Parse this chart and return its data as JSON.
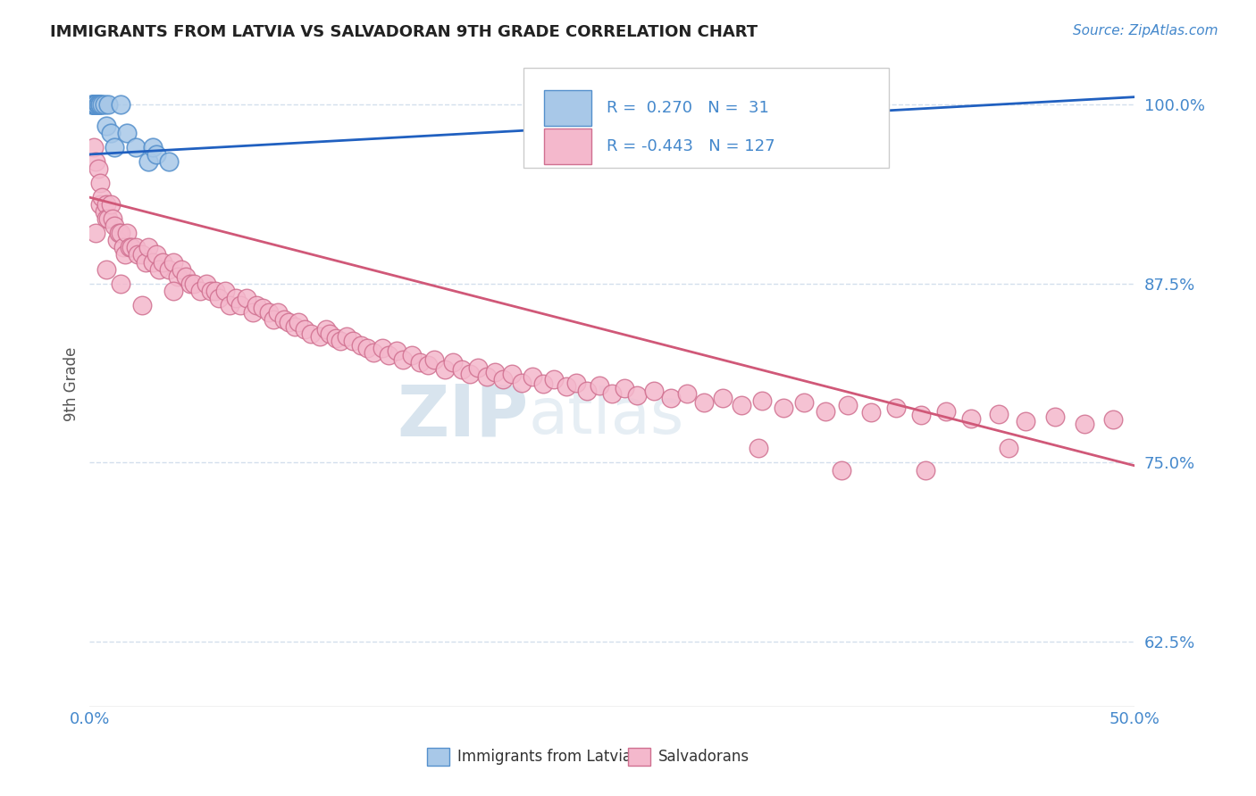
{
  "title": "IMMIGRANTS FROM LATVIA VS SALVADORAN 9TH GRADE CORRELATION CHART",
  "source_text": "Source: ZipAtlas.com",
  "ylabel": "9th Grade",
  "xmin": 0.0,
  "xmax": 0.5,
  "ymin": 0.58,
  "ymax": 1.03,
  "xtick_labels": [
    "0.0%",
    "50.0%"
  ],
  "ytick_labels": [
    "62.5%",
    "75.0%",
    "87.5%",
    "100.0%"
  ],
  "ytick_values": [
    0.625,
    0.75,
    0.875,
    1.0
  ],
  "legend_blue_label": "Immigrants from Latvia",
  "legend_pink_label": "Salvadorans",
  "R_blue": 0.27,
  "N_blue": 31,
  "R_pink": -0.443,
  "N_pink": 127,
  "blue_color": "#a8c8e8",
  "blue_edge_color": "#5590cc",
  "blue_line_color": "#2060c0",
  "pink_color": "#f4b8cc",
  "pink_edge_color": "#d07090",
  "pink_line_color": "#d05878",
  "watermark_color": "#ccdde8",
  "background_color": "#ffffff",
  "grid_color": "#c8d8e8",
  "tick_color": "#4488cc",
  "title_color": "#222222",
  "blue_trend_x0": 0.0,
  "blue_trend_y0": 0.965,
  "blue_trend_x1": 0.5,
  "blue_trend_y1": 1.005,
  "pink_trend_x0": 0.0,
  "pink_trend_y0": 0.935,
  "pink_trend_x1": 0.5,
  "pink_trend_y1": 0.748,
  "blue_scatter_x": [
    0.001,
    0.001,
    0.002,
    0.002,
    0.002,
    0.002,
    0.003,
    0.003,
    0.003,
    0.003,
    0.003,
    0.003,
    0.004,
    0.004,
    0.004,
    0.005,
    0.005,
    0.006,
    0.007,
    0.008,
    0.009,
    0.01,
    0.012,
    0.015,
    0.018,
    0.022,
    0.028,
    0.03,
    0.032,
    0.038,
    0.26
  ],
  "blue_scatter_y": [
    1.0,
    1.0,
    1.0,
    1.0,
    1.0,
    1.0,
    1.0,
    1.0,
    1.0,
    1.0,
    1.0,
    1.0,
    1.0,
    1.0,
    1.0,
    1.0,
    1.0,
    1.0,
    1.0,
    0.985,
    1.0,
    0.98,
    0.97,
    1.0,
    0.98,
    0.97,
    0.96,
    0.97,
    0.965,
    0.96,
    0.975
  ],
  "pink_scatter_x": [
    0.002,
    0.003,
    0.004,
    0.005,
    0.005,
    0.006,
    0.007,
    0.008,
    0.008,
    0.009,
    0.01,
    0.011,
    0.012,
    0.013,
    0.014,
    0.015,
    0.016,
    0.017,
    0.018,
    0.019,
    0.02,
    0.022,
    0.023,
    0.025,
    0.027,
    0.028,
    0.03,
    0.032,
    0.033,
    0.035,
    0.038,
    0.04,
    0.042,
    0.044,
    0.046,
    0.048,
    0.05,
    0.053,
    0.056,
    0.058,
    0.06,
    0.062,
    0.065,
    0.067,
    0.07,
    0.072,
    0.075,
    0.078,
    0.08,
    0.083,
    0.086,
    0.088,
    0.09,
    0.093,
    0.095,
    0.098,
    0.1,
    0.103,
    0.106,
    0.11,
    0.113,
    0.115,
    0.118,
    0.12,
    0.123,
    0.126,
    0.13,
    0.133,
    0.136,
    0.14,
    0.143,
    0.147,
    0.15,
    0.154,
    0.158,
    0.162,
    0.165,
    0.17,
    0.174,
    0.178,
    0.182,
    0.186,
    0.19,
    0.194,
    0.198,
    0.202,
    0.207,
    0.212,
    0.217,
    0.222,
    0.228,
    0.233,
    0.238,
    0.244,
    0.25,
    0.256,
    0.262,
    0.27,
    0.278,
    0.286,
    0.294,
    0.303,
    0.312,
    0.322,
    0.332,
    0.342,
    0.352,
    0.363,
    0.374,
    0.386,
    0.398,
    0.41,
    0.422,
    0.435,
    0.448,
    0.462,
    0.476,
    0.49,
    0.003,
    0.008,
    0.015,
    0.025,
    0.04,
    0.32,
    0.36,
    0.4,
    0.44
  ],
  "pink_scatter_y": [
    0.97,
    0.96,
    0.955,
    0.945,
    0.93,
    0.935,
    0.925,
    0.93,
    0.92,
    0.92,
    0.93,
    0.92,
    0.915,
    0.905,
    0.91,
    0.91,
    0.9,
    0.895,
    0.91,
    0.9,
    0.9,
    0.9,
    0.895,
    0.895,
    0.89,
    0.9,
    0.89,
    0.895,
    0.885,
    0.89,
    0.885,
    0.89,
    0.88,
    0.885,
    0.88,
    0.875,
    0.875,
    0.87,
    0.875,
    0.87,
    0.87,
    0.865,
    0.87,
    0.86,
    0.865,
    0.86,
    0.865,
    0.855,
    0.86,
    0.858,
    0.855,
    0.85,
    0.855,
    0.85,
    0.848,
    0.845,
    0.848,
    0.843,
    0.84,
    0.838,
    0.843,
    0.84,
    0.837,
    0.835,
    0.838,
    0.835,
    0.832,
    0.83,
    0.827,
    0.83,
    0.825,
    0.828,
    0.822,
    0.825,
    0.82,
    0.818,
    0.822,
    0.815,
    0.82,
    0.815,
    0.812,
    0.816,
    0.81,
    0.813,
    0.808,
    0.812,
    0.806,
    0.81,
    0.805,
    0.808,
    0.803,
    0.806,
    0.8,
    0.804,
    0.798,
    0.802,
    0.797,
    0.8,
    0.795,
    0.798,
    0.792,
    0.795,
    0.79,
    0.793,
    0.788,
    0.792,
    0.786,
    0.79,
    0.785,
    0.788,
    0.783,
    0.786,
    0.781,
    0.784,
    0.779,
    0.782,
    0.777,
    0.78,
    0.91,
    0.885,
    0.875,
    0.86,
    0.87,
    0.76,
    0.745,
    0.745,
    0.76
  ]
}
